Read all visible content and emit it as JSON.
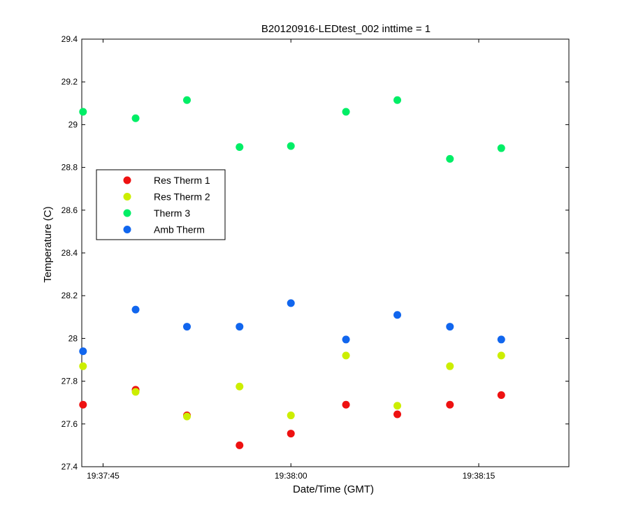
{
  "chart_data": {
    "type": "scatter",
    "title": "B20120916-LEDtest_002 inttime = 1",
    "xlabel": "Date/Time (GMT)",
    "ylabel": "Temperature (C)",
    "x_unit": "seconds",
    "xlim": [
      43.3,
      82.2
    ],
    "ylim": [
      27.4,
      29.4
    ],
    "x_ticks": [
      {
        "value": 45,
        "label": "19:37:45"
      },
      {
        "value": 60,
        "label": "19:38:00"
      },
      {
        "value": 75,
        "label": "19:38:15"
      }
    ],
    "y_ticks": [
      {
        "value": 27.4,
        "label": "27.4"
      },
      {
        "value": 27.6,
        "label": "27.6"
      },
      {
        "value": 27.8,
        "label": "27.8"
      },
      {
        "value": 28.0,
        "label": "28"
      },
      {
        "value": 28.2,
        "label": "28.2"
      },
      {
        "value": 28.4,
        "label": "28.4"
      },
      {
        "value": 28.6,
        "label": "28.6"
      },
      {
        "value": 28.8,
        "label": "28.8"
      },
      {
        "value": 29.0,
        "label": "29"
      },
      {
        "value": 29.2,
        "label": "29.2"
      },
      {
        "value": 29.4,
        "label": "29.4"
      }
    ],
    "x": [
      43.4,
      47.6,
      51.7,
      55.9,
      60.0,
      64.4,
      68.5,
      72.7,
      76.8
    ],
    "series": [
      {
        "name": "Res Therm 1",
        "color": "#ee1111",
        "values": [
          27.69,
          27.76,
          27.64,
          27.5,
          27.555,
          27.69,
          27.645,
          27.69,
          27.735
        ]
      },
      {
        "name": "Res Therm 2",
        "color": "#ccee00",
        "values": [
          27.87,
          27.75,
          27.635,
          27.775,
          27.64,
          27.92,
          27.685,
          27.87,
          27.92
        ]
      },
      {
        "name": "Therm 3",
        "color": "#00ee66",
        "values": [
          29.06,
          29.03,
          29.115,
          28.895,
          28.9,
          29.06,
          29.115,
          28.84,
          28.89
        ]
      },
      {
        "name": "Amb Therm",
        "color": "#1166ee",
        "values": [
          27.94,
          28.135,
          28.055,
          28.055,
          28.165,
          27.995,
          28.11,
          28.055,
          27.995
        ]
      }
    ],
    "legend_position": "left",
    "grid": false
  }
}
